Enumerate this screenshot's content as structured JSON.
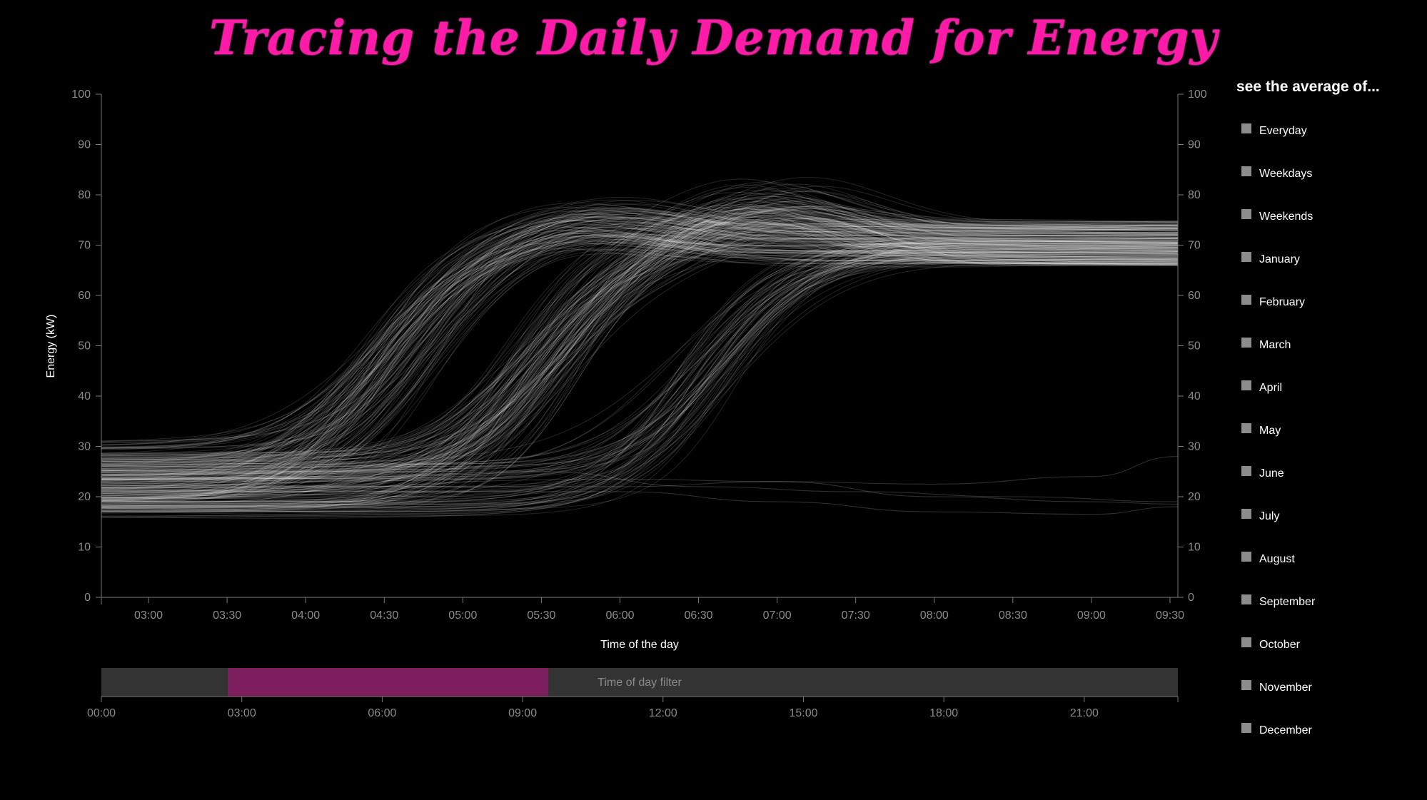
{
  "title": "Tracing the Daily Demand for Energy",
  "legend": {
    "title": "see the average of...",
    "items": [
      "Everyday",
      "Weekdays",
      "Weekends",
      "January",
      "February",
      "March",
      "April",
      "May",
      "June",
      "July",
      "August",
      "September",
      "October",
      "November",
      "December"
    ],
    "box_color": "#8c8c8c"
  },
  "brush": {
    "label": "Time of day filter",
    "ticks": [
      "00:00",
      "03:00",
      "06:00",
      "09:00",
      "12:00",
      "15:00",
      "18:00",
      "21:00"
    ],
    "domain_hours": [
      0,
      23
    ],
    "selection_hours": [
      2.7,
      9.55
    ],
    "track_color": "#333333",
    "selection_color": "#7d1f5f"
  },
  "chart_data": {
    "type": "line",
    "title": "Tracing the Daily Demand for Energy",
    "xlabel": "Time of the day",
    "ylabel": "Energy (kW)",
    "x_ticks": [
      "03:00",
      "03:30",
      "04:00",
      "04:30",
      "05:00",
      "05:30",
      "06:00",
      "06:30",
      "07:00",
      "07:30",
      "08:00",
      "08:30",
      "09:00",
      "09:30"
    ],
    "xlim": [
      "02:42",
      "09:33"
    ],
    "y_ticks": [
      0,
      10,
      20,
      30,
      40,
      50,
      60,
      70,
      80,
      90,
      100
    ],
    "ylim": [
      0,
      100
    ],
    "line_color": "#ffffff",
    "groups": [
      {
        "count": 120,
        "baseline_kw": [
          19,
          31
        ],
        "plateau_kw": [
          66,
          75
        ],
        "midpoint": [
          "04:20",
          "04:50"
        ],
        "overshoot_kw": 5,
        "peak_time": "05:45"
      },
      {
        "count": 130,
        "baseline_kw": [
          17,
          29
        ],
        "plateau_kw": [
          66,
          75
        ],
        "midpoint": [
          "05:15",
          "05:45"
        ],
        "overshoot_kw": 8,
        "peak_time": "06:55"
      },
      {
        "count": 70,
        "baseline_kw": [
          16,
          27
        ],
        "plateau_kw": [
          66,
          71
        ],
        "midpoint": [
          "06:20",
          "06:45"
        ],
        "overshoot_kw": 1,
        "peak_time": "08:00"
      }
    ],
    "outliers": [
      {
        "x": [
          "02:42",
          "06:00",
          "07:00",
          "08:00",
          "09:00",
          "09:33"
        ],
        "y": [
          22,
          22,
          23,
          22.5,
          24,
          28
        ]
      },
      {
        "x": [
          "02:42",
          "05:30",
          "06:30",
          "07:30",
          "08:30",
          "09:33"
        ],
        "y": [
          19,
          25,
          22,
          21,
          20,
          19
        ]
      },
      {
        "x": [
          "02:42",
          "06:00",
          "07:00",
          "08:00",
          "09:00",
          "09:33"
        ],
        "y": [
          21,
          21,
          19,
          17,
          16.5,
          18
        ]
      },
      {
        "x": [
          "02:42",
          "06:00",
          "07:00",
          "08:00",
          "09:00",
          "09:33"
        ],
        "y": [
          20,
          23.5,
          23,
          20,
          19,
          18.5
        ]
      }
    ]
  }
}
